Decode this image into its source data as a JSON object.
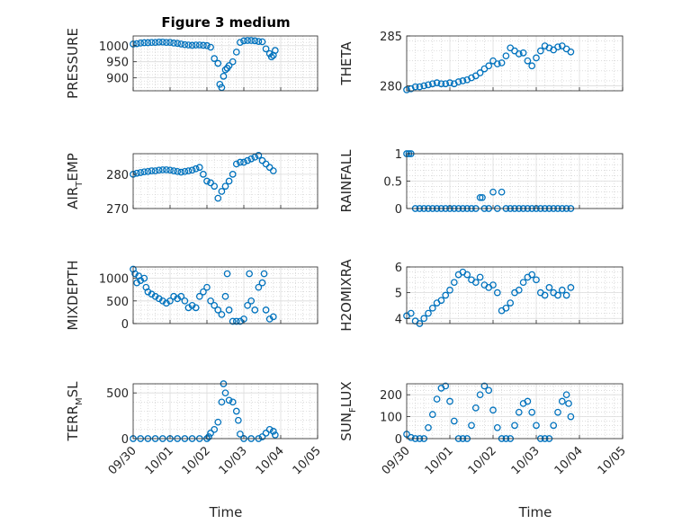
{
  "figure_title": "Figure 3 medium",
  "chart_data": [
    {
      "type": "scatter",
      "ylabel": "PRESSURE",
      "ylim": [
        860,
        1030
      ],
      "yticks": [
        900,
        950,
        1000
      ],
      "xlim": [
        "09/30",
        "10/05"
      ],
      "xticks": [
        "09/30",
        "10/01",
        "10/02",
        "10/03",
        "10/04",
        "10/05"
      ],
      "grid": true,
      "minor_grid": true,
      "points": [
        [
          0.0,
          1005
        ],
        [
          0.1,
          1006
        ],
        [
          0.2,
          1008
        ],
        [
          0.3,
          1009
        ],
        [
          0.4,
          1009
        ],
        [
          0.5,
          1010
        ],
        [
          0.6,
          1010
        ],
        [
          0.7,
          1011
        ],
        [
          0.8,
          1011
        ],
        [
          0.9,
          1010
        ],
        [
          1.0,
          1010
        ],
        [
          1.1,
          1008
        ],
        [
          1.2,
          1007
        ],
        [
          1.3,
          1005
        ],
        [
          1.4,
          1003
        ],
        [
          1.5,
          1002
        ],
        [
          1.6,
          1001
        ],
        [
          1.7,
          1002
        ],
        [
          1.8,
          1002
        ],
        [
          1.9,
          1001
        ],
        [
          2.0,
          1000
        ],
        [
          2.1,
          995
        ],
        [
          2.2,
          960
        ],
        [
          2.3,
          945
        ],
        [
          2.35,
          880
        ],
        [
          2.4,
          870
        ],
        [
          2.45,
          905
        ],
        [
          2.5,
          925
        ],
        [
          2.55,
          930
        ],
        [
          2.6,
          938
        ],
        [
          2.7,
          950
        ],
        [
          2.8,
          980
        ],
        [
          2.9,
          1010
        ],
        [
          3.0,
          1015
        ],
        [
          3.1,
          1016
        ],
        [
          3.2,
          1016
        ],
        [
          3.3,
          1015
        ],
        [
          3.4,
          1013
        ],
        [
          3.5,
          1012
        ],
        [
          3.6,
          990
        ],
        [
          3.7,
          975
        ],
        [
          3.75,
          965
        ],
        [
          3.8,
          970
        ],
        [
          3.85,
          985
        ]
      ]
    },
    {
      "type": "scatter",
      "ylabel": "THETA",
      "ylim": [
        279.5,
        285
      ],
      "yticks": [
        280,
        285
      ],
      "xlim": [
        "09/30",
        "10/05"
      ],
      "xticks": [
        "09/30",
        "10/01",
        "10/02",
        "10/03",
        "10/04",
        "10/05"
      ],
      "grid": true,
      "minor_grid": true,
      "points": [
        [
          0.0,
          279.6
        ],
        [
          0.1,
          279.7
        ],
        [
          0.2,
          279.9
        ],
        [
          0.3,
          279.9
        ],
        [
          0.4,
          280.0
        ],
        [
          0.5,
          280.1
        ],
        [
          0.6,
          280.2
        ],
        [
          0.7,
          280.3
        ],
        [
          0.8,
          280.2
        ],
        [
          0.9,
          280.2
        ],
        [
          1.0,
          280.3
        ],
        [
          1.1,
          280.2
        ],
        [
          1.2,
          280.4
        ],
        [
          1.3,
          280.5
        ],
        [
          1.4,
          280.6
        ],
        [
          1.5,
          280.8
        ],
        [
          1.6,
          281.0
        ],
        [
          1.7,
          281.3
        ],
        [
          1.8,
          281.7
        ],
        [
          1.9,
          282.0
        ],
        [
          2.0,
          282.5
        ],
        [
          2.1,
          282.2
        ],
        [
          2.2,
          282.3
        ],
        [
          2.3,
          283.0
        ],
        [
          2.4,
          283.8
        ],
        [
          2.5,
          283.5
        ],
        [
          2.6,
          283.2
        ],
        [
          2.7,
          283.3
        ],
        [
          2.8,
          282.5
        ],
        [
          2.9,
          282.0
        ],
        [
          3.0,
          282.8
        ],
        [
          3.1,
          283.5
        ],
        [
          3.2,
          284.0
        ],
        [
          3.3,
          283.8
        ],
        [
          3.4,
          283.6
        ],
        [
          3.5,
          283.9
        ],
        [
          3.6,
          284.0
        ],
        [
          3.7,
          283.7
        ],
        [
          3.8,
          283.4
        ]
      ]
    },
    {
      "type": "scatter",
      "ylabel": "AIR_TEMP",
      "ylim": [
        270,
        286
      ],
      "yticks": [
        270,
        280
      ],
      "xlim": [
        "09/30",
        "10/05"
      ],
      "xticks": [
        "09/30",
        "10/01",
        "10/02",
        "10/03",
        "10/04",
        "10/05"
      ],
      "grid": true,
      "minor_grid": true,
      "points": [
        [
          0.0,
          280.0
        ],
        [
          0.1,
          280.3
        ],
        [
          0.2,
          280.5
        ],
        [
          0.3,
          280.7
        ],
        [
          0.4,
          280.8
        ],
        [
          0.5,
          281.0
        ],
        [
          0.6,
          281.0
        ],
        [
          0.7,
          281.2
        ],
        [
          0.8,
          281.3
        ],
        [
          0.9,
          281.3
        ],
        [
          1.0,
          281.2
        ],
        [
          1.1,
          281.0
        ],
        [
          1.2,
          280.8
        ],
        [
          1.3,
          280.6
        ],
        [
          1.4,
          280.8
        ],
        [
          1.5,
          281.0
        ],
        [
          1.6,
          281.2
        ],
        [
          1.7,
          281.6
        ],
        [
          1.8,
          282.0
        ],
        [
          1.9,
          280.0
        ],
        [
          2.0,
          278.0
        ],
        [
          2.1,
          277.5
        ],
        [
          2.2,
          276.5
        ],
        [
          2.3,
          273.0
        ],
        [
          2.4,
          275.0
        ],
        [
          2.5,
          276.5
        ],
        [
          2.6,
          278.0
        ],
        [
          2.7,
          280.0
        ],
        [
          2.8,
          283.0
        ],
        [
          2.9,
          283.5
        ],
        [
          3.0,
          283.5
        ],
        [
          3.1,
          284.0
        ],
        [
          3.2,
          284.5
        ],
        [
          3.3,
          285.0
        ],
        [
          3.4,
          285.5
        ],
        [
          3.5,
          284.0
        ],
        [
          3.6,
          283.0
        ],
        [
          3.7,
          282.0
        ],
        [
          3.8,
          281.0
        ]
      ]
    },
    {
      "type": "scatter",
      "ylabel": "RAINFALL",
      "ylim": [
        0,
        1
      ],
      "yticks": [
        0,
        0.5,
        1
      ],
      "xlim": [
        "09/30",
        "10/05"
      ],
      "xticks": [
        "09/30",
        "10/01",
        "10/02",
        "10/03",
        "10/04",
        "10/05"
      ],
      "grid": true,
      "minor_grid": true,
      "points": [
        [
          0.0,
          1
        ],
        [
          0.05,
          1
        ],
        [
          0.1,
          1
        ],
        [
          0.2,
          0
        ],
        [
          0.3,
          0
        ],
        [
          0.4,
          0
        ],
        [
          0.5,
          0
        ],
        [
          0.6,
          0
        ],
        [
          0.7,
          0
        ],
        [
          0.8,
          0
        ],
        [
          0.9,
          0
        ],
        [
          1.0,
          0
        ],
        [
          1.1,
          0
        ],
        [
          1.2,
          0
        ],
        [
          1.3,
          0
        ],
        [
          1.4,
          0
        ],
        [
          1.5,
          0
        ],
        [
          1.6,
          0
        ],
        [
          1.7,
          0.2
        ],
        [
          1.75,
          0.2
        ],
        [
          1.8,
          0
        ],
        [
          1.9,
          0
        ],
        [
          2.0,
          0.3
        ],
        [
          2.1,
          0
        ],
        [
          2.2,
          0.3
        ],
        [
          2.3,
          0
        ],
        [
          2.4,
          0
        ],
        [
          2.5,
          0
        ],
        [
          2.6,
          0
        ],
        [
          2.7,
          0
        ],
        [
          2.8,
          0
        ],
        [
          2.9,
          0
        ],
        [
          3.0,
          0
        ],
        [
          3.1,
          0
        ],
        [
          3.2,
          0
        ],
        [
          3.3,
          0
        ],
        [
          3.4,
          0
        ],
        [
          3.5,
          0
        ],
        [
          3.6,
          0
        ],
        [
          3.7,
          0
        ],
        [
          3.8,
          0
        ]
      ]
    },
    {
      "type": "scatter",
      "ylabel": "MIXDEPTH",
      "ylim": [
        0,
        1250
      ],
      "yticks": [
        0,
        500,
        1000
      ],
      "xlim": [
        "09/30",
        "10/05"
      ],
      "xticks": [
        "09/30",
        "10/01",
        "10/02",
        "10/03",
        "10/04",
        "10/05"
      ],
      "grid": true,
      "minor_grid": true,
      "points": [
        [
          0.0,
          1200
        ],
        [
          0.05,
          1100
        ],
        [
          0.1,
          900
        ],
        [
          0.15,
          1050
        ],
        [
          0.2,
          950
        ],
        [
          0.3,
          1000
        ],
        [
          0.35,
          800
        ],
        [
          0.4,
          700
        ],
        [
          0.5,
          650
        ],
        [
          0.6,
          600
        ],
        [
          0.7,
          550
        ],
        [
          0.8,
          500
        ],
        [
          0.9,
          450
        ],
        [
          1.0,
          500
        ],
        [
          1.1,
          600
        ],
        [
          1.2,
          550
        ],
        [
          1.3,
          600
        ],
        [
          1.4,
          500
        ],
        [
          1.5,
          350
        ],
        [
          1.6,
          400
        ],
        [
          1.7,
          350
        ],
        [
          1.8,
          600
        ],
        [
          1.9,
          700
        ],
        [
          2.0,
          800
        ],
        [
          2.1,
          500
        ],
        [
          2.2,
          400
        ],
        [
          2.3,
          300
        ],
        [
          2.4,
          200
        ],
        [
          2.5,
          600
        ],
        [
          2.55,
          1100
        ],
        [
          2.6,
          300
        ],
        [
          2.7,
          50
        ],
        [
          2.8,
          50
        ],
        [
          2.9,
          50
        ],
        [
          3.0,
          100
        ],
        [
          3.1,
          400
        ],
        [
          3.15,
          1100
        ],
        [
          3.2,
          500
        ],
        [
          3.3,
          300
        ],
        [
          3.4,
          800
        ],
        [
          3.5,
          900
        ],
        [
          3.55,
          1100
        ],
        [
          3.6,
          300
        ],
        [
          3.7,
          100
        ],
        [
          3.8,
          150
        ]
      ]
    },
    {
      "type": "scatter",
      "ylabel": "H2OMIXRA",
      "ylim": [
        3.8,
        6
      ],
      "yticks": [
        4,
        5,
        6
      ],
      "xlim": [
        "09/30",
        "10/05"
      ],
      "xticks": [
        "09/30",
        "10/01",
        "10/02",
        "10/03",
        "10/04",
        "10/05"
      ],
      "grid": true,
      "minor_grid": true,
      "points": [
        [
          0.0,
          4.1
        ],
        [
          0.1,
          4.2
        ],
        [
          0.2,
          3.9
        ],
        [
          0.3,
          3.8
        ],
        [
          0.4,
          4.0
        ],
        [
          0.5,
          4.2
        ],
        [
          0.6,
          4.4
        ],
        [
          0.7,
          4.6
        ],
        [
          0.8,
          4.7
        ],
        [
          0.9,
          4.9
        ],
        [
          1.0,
          5.1
        ],
        [
          1.1,
          5.4
        ],
        [
          1.2,
          5.7
        ],
        [
          1.3,
          5.8
        ],
        [
          1.4,
          5.7
        ],
        [
          1.5,
          5.5
        ],
        [
          1.6,
          5.4
        ],
        [
          1.7,
          5.6
        ],
        [
          1.8,
          5.3
        ],
        [
          1.9,
          5.2
        ],
        [
          2.0,
          5.3
        ],
        [
          2.1,
          5.0
        ],
        [
          2.2,
          4.3
        ],
        [
          2.3,
          4.4
        ],
        [
          2.4,
          4.6
        ],
        [
          2.5,
          5.0
        ],
        [
          2.6,
          5.1
        ],
        [
          2.7,
          5.4
        ],
        [
          2.8,
          5.6
        ],
        [
          2.9,
          5.7
        ],
        [
          3.0,
          5.5
        ],
        [
          3.1,
          5.0
        ],
        [
          3.2,
          4.9
        ],
        [
          3.3,
          5.2
        ],
        [
          3.4,
          5.0
        ],
        [
          3.5,
          4.9
        ],
        [
          3.6,
          5.1
        ],
        [
          3.7,
          4.9
        ],
        [
          3.8,
          5.2
        ]
      ]
    },
    {
      "type": "scatter",
      "ylabel": "TERR_MSL",
      "ylim": [
        0,
        600
      ],
      "yticks": [
        0,
        500
      ],
      "xlim": [
        "09/30",
        "10/05"
      ],
      "xticks": [
        "09/30",
        "10/01",
        "10/02",
        "10/03",
        "10/04",
        "10/05"
      ],
      "grid": true,
      "minor_grid": true,
      "points": [
        [
          0.0,
          0
        ],
        [
          0.2,
          0
        ],
        [
          0.4,
          0
        ],
        [
          0.6,
          0
        ],
        [
          0.8,
          0
        ],
        [
          1.0,
          0
        ],
        [
          1.2,
          0
        ],
        [
          1.4,
          0
        ],
        [
          1.6,
          0
        ],
        [
          1.8,
          0
        ],
        [
          2.0,
          0
        ],
        [
          2.05,
          20
        ],
        [
          2.1,
          60
        ],
        [
          2.2,
          100
        ],
        [
          2.3,
          180
        ],
        [
          2.4,
          400
        ],
        [
          2.45,
          600
        ],
        [
          2.5,
          500
        ],
        [
          2.6,
          420
        ],
        [
          2.7,
          400
        ],
        [
          2.8,
          300
        ],
        [
          2.85,
          200
        ],
        [
          2.9,
          50
        ],
        [
          3.0,
          0
        ],
        [
          3.2,
          0
        ],
        [
          3.4,
          0
        ],
        [
          3.5,
          20
        ],
        [
          3.6,
          60
        ],
        [
          3.7,
          100
        ],
        [
          3.8,
          80
        ],
        [
          3.85,
          40
        ]
      ]
    },
    {
      "type": "scatter",
      "ylabel": "SUN_FLUX",
      "ylim": [
        0,
        250
      ],
      "yticks": [
        0,
        100,
        200
      ],
      "xlim": [
        "09/30",
        "10/05"
      ],
      "xticks": [
        "09/30",
        "10/01",
        "10/02",
        "10/03",
        "10/04",
        "10/05"
      ],
      "grid": true,
      "minor_grid": true,
      "points": [
        [
          0.0,
          20
        ],
        [
          0.1,
          5
        ],
        [
          0.2,
          0
        ],
        [
          0.3,
          0
        ],
        [
          0.4,
          0
        ],
        [
          0.5,
          50
        ],
        [
          0.6,
          110
        ],
        [
          0.7,
          180
        ],
        [
          0.8,
          230
        ],
        [
          0.9,
          240
        ],
        [
          1.0,
          170
        ],
        [
          1.1,
          80
        ],
        [
          1.2,
          0
        ],
        [
          1.3,
          0
        ],
        [
          1.4,
          0
        ],
        [
          1.5,
          60
        ],
        [
          1.6,
          140
        ],
        [
          1.7,
          200
        ],
        [
          1.8,
          240
        ],
        [
          1.9,
          220
        ],
        [
          2.0,
          130
        ],
        [
          2.1,
          50
        ],
        [
          2.2,
          0
        ],
        [
          2.3,
          0
        ],
        [
          2.4,
          0
        ],
        [
          2.5,
          60
        ],
        [
          2.6,
          120
        ],
        [
          2.7,
          160
        ],
        [
          2.8,
          170
        ],
        [
          2.9,
          120
        ],
        [
          3.0,
          60
        ],
        [
          3.1,
          0
        ],
        [
          3.2,
          0
        ],
        [
          3.3,
          0
        ],
        [
          3.4,
          60
        ],
        [
          3.5,
          120
        ],
        [
          3.6,
          170
        ],
        [
          3.7,
          200
        ],
        [
          3.75,
          160
        ],
        [
          3.8,
          100
        ]
      ]
    }
  ],
  "xlabel_left": "Time",
  "xlabel_right": "Time",
  "marker_color": "#0072BD"
}
